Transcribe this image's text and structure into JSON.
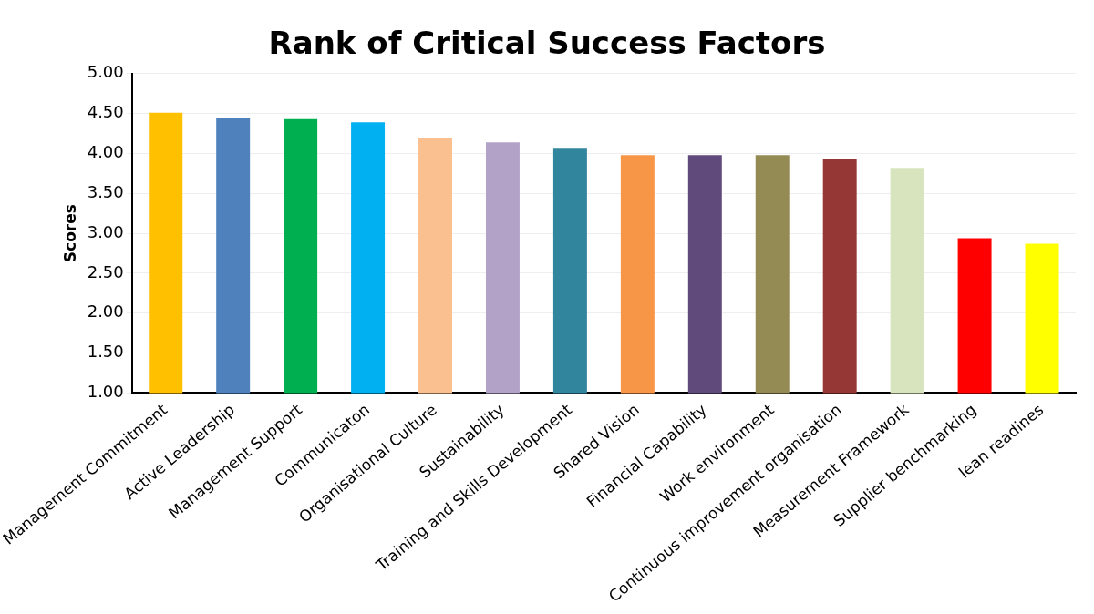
{
  "chart_data": {
    "type": "bar",
    "title": "Rank of Critical Success Factors",
    "ylabel": "Scores",
    "categories": [
      "Management Commitment",
      "Active Leadership",
      "Management Support",
      "Communicaton",
      "Organisational Culture",
      "Sustainability",
      "Training and Skills Development",
      "Shared Vision",
      "Financial Capability",
      "Work environment",
      "Continuous improvement organisation",
      "Measurement Framework",
      "Supplier benchmarking",
      "lean readines"
    ],
    "values": [
      4.51,
      4.45,
      4.43,
      4.39,
      4.2,
      4.14,
      4.06,
      3.98,
      3.98,
      3.98,
      3.93,
      3.82,
      2.94,
      2.87
    ],
    "colors": [
      "#ffc000",
      "#4f81bd",
      "#00b050",
      "#00b0f0",
      "#fac090",
      "#b3a2c7",
      "#31859c",
      "#f79646",
      "#604a7b",
      "#948a54",
      "#953735",
      "#d7e4bd",
      "#ff0000",
      "#ffff00"
    ],
    "ylim": [
      1,
      5
    ],
    "yticks": [
      {
        "value": 1,
        "label": "1.00"
      },
      {
        "value": 1.5,
        "label": "1.50"
      },
      {
        "value": 2,
        "label": "2.00"
      },
      {
        "value": 2.5,
        "label": "2.50"
      },
      {
        "value": 3,
        "label": "3.00"
      },
      {
        "value": 3.5,
        "label": "3.50"
      },
      {
        "value": 4,
        "label": "4.00"
      },
      {
        "value": 4.5,
        "label": "4.50"
      },
      {
        "value": 5,
        "label": "5.00"
      }
    ],
    "grid": "y",
    "legend": false
  }
}
